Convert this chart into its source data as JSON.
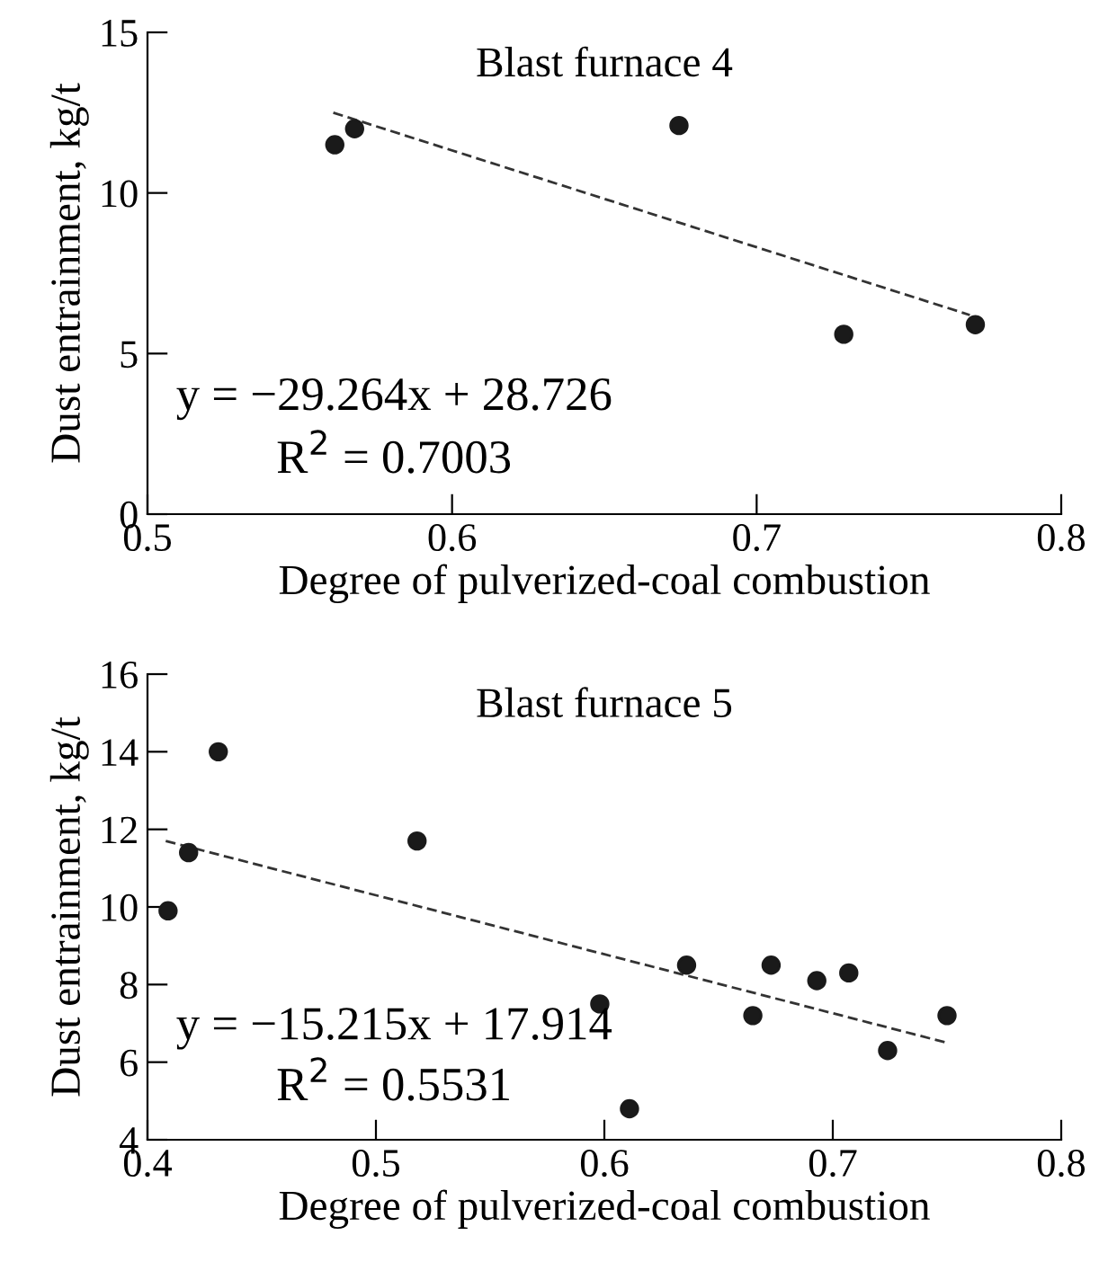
{
  "chart_data": [
    {
      "type": "scatter",
      "title": "Blast furnace 4",
      "xlabel": "Degree of pulverized-coal combustion",
      "ylabel": "Dust entrainment, kg/t",
      "x": [
        0.5615,
        0.568,
        0.6745,
        0.7286,
        0.7718
      ],
      "series": [
        {
          "color": "#1a1a1a",
          "marker": "circle",
          "values": [
            11.5,
            12.0,
            12.1,
            5.6,
            5.9
          ]
        },
        {
          "type": "line",
          "color": "#333333",
          "line_style": "dashed",
          "marker": "none",
          "x": [
            0.561,
            0.77
          ],
          "values": [
            12.5,
            6.2
          ]
        }
      ],
      "annotations": [
        "y = −29.264x + 28.726",
        "R$^{2}$ = 0.7003"
      ],
      "xlim": [
        0.5,
        0.8
      ],
      "xticks": [
        0.5,
        0.6,
        0.7,
        0.8
      ],
      "ylim": [
        0,
        15
      ],
      "yticks": [
        0,
        5,
        10,
        15
      ],
      "grid": false,
      "legend": false
    },
    {
      "type": "scatter",
      "title": "Blast furnace 5",
      "xlabel": "Degree of pulverized-coal combustion",
      "ylabel": "Dust entrainment, kg/t",
      "x": [
        0.409,
        0.418,
        0.431,
        0.518,
        0.598,
        0.611,
        0.636,
        0.665,
        0.673,
        0.693,
        0.707,
        0.724,
        0.75
      ],
      "series": [
        {
          "color": "#1a1a1a",
          "marker": "circle",
          "values": [
            9.9,
            11.4,
            14.0,
            11.7,
            7.5,
            4.8,
            8.5,
            7.2,
            8.5,
            8.1,
            8.3,
            6.3,
            7.2
          ]
        },
        {
          "type": "line",
          "color": "#333333",
          "line_style": "dashed",
          "marker": "none",
          "x": [
            0.408,
            0.75
          ],
          "values": [
            11.7,
            6.5
          ]
        }
      ],
      "annotations": [
        "y = −15.215x + 17.914",
        "R$^{2}$ = 0.5531"
      ],
      "xlim": [
        0.4,
        0.8
      ],
      "xticks": [
        0.4,
        0.5,
        0.6,
        0.7,
        0.8
      ],
      "ylim": [
        4,
        16
      ],
      "yticks": [
        4,
        6,
        8,
        10,
        12,
        14,
        16
      ],
      "grid": false,
      "legend": false
    }
  ]
}
